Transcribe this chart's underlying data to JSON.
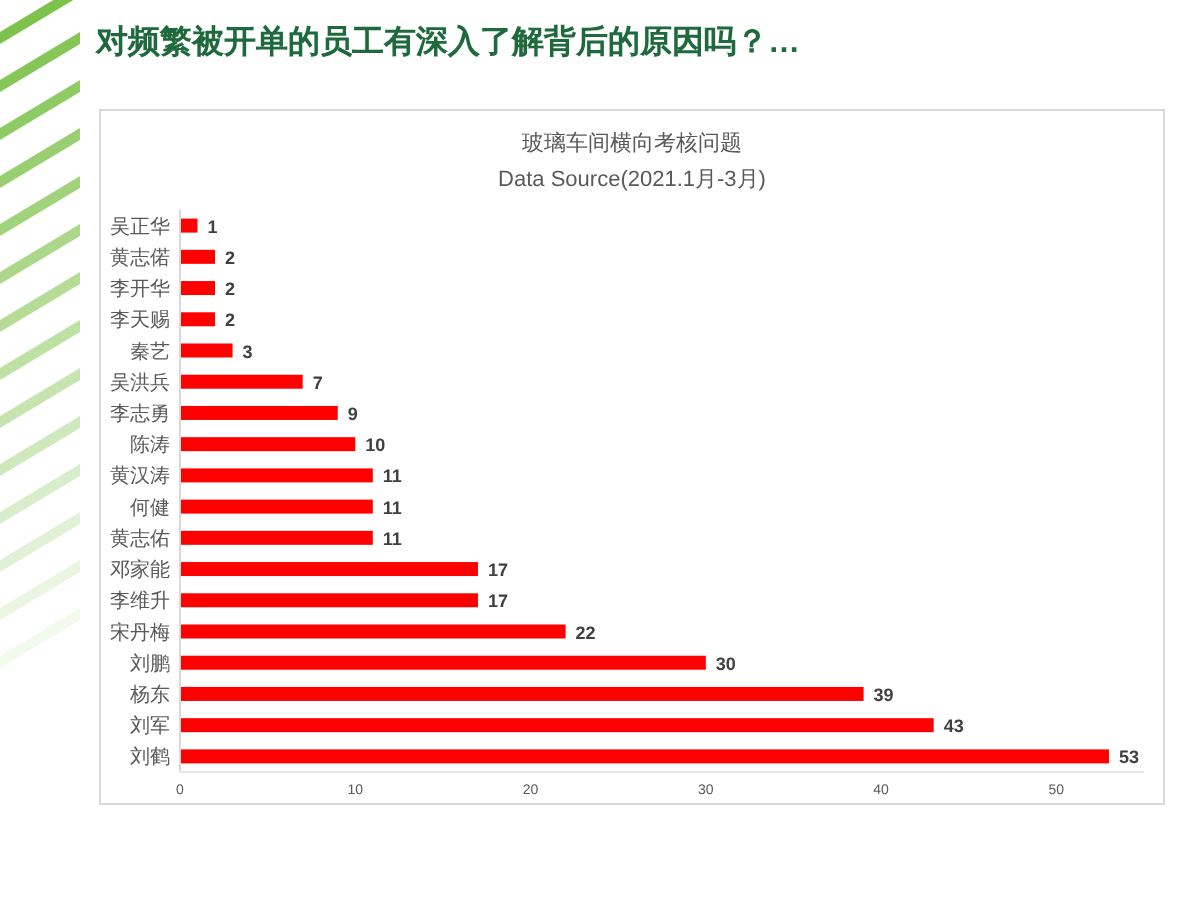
{
  "chart_data": {
    "type": "bar",
    "orientation": "horizontal",
    "title": "玻璃车间横向考核问题",
    "subtitle": "Data Source(2021.1月-3月)",
    "annotations": [
      "对频繁被开单的员工有深入了解背后的原因吗？…"
    ],
    "categories": [
      "吴正华",
      "黄志偌",
      "李开华",
      "李天赐",
      "秦艺",
      "吴洪兵",
      "李志勇",
      "陈涛",
      "黄汉涛",
      "何健",
      "黄志佑",
      "邓家能",
      "李维升",
      "宋丹梅",
      "刘鹏",
      "杨东",
      "刘军",
      "刘鹤"
    ],
    "values": [
      1,
      2,
      2,
      2,
      3,
      7,
      9,
      10,
      11,
      11,
      11,
      17,
      17,
      22,
      30,
      39,
      43,
      53
    ],
    "color": "#ff0000",
    "data_labels": true,
    "xlim": [
      0,
      55
    ],
    "xticks": [
      0,
      10,
      20,
      30,
      40,
      50
    ],
    "grid": false
  }
}
